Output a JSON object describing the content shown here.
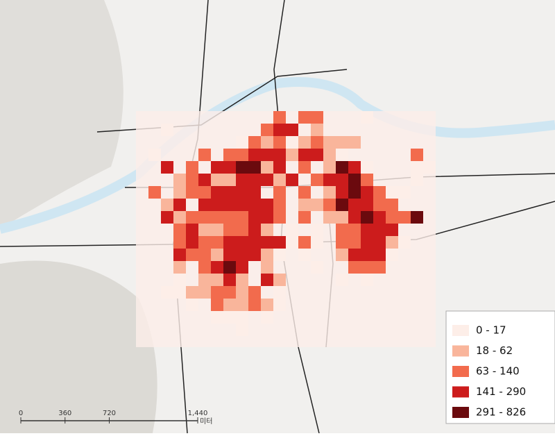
{
  "legend": {
    "items": [
      {
        "label": "0 - 17",
        "color": "#fdeee8"
      },
      {
        "label": "18 - 62",
        "color": "#f9b59b"
      },
      {
        "label": "63 - 140",
        "color": "#f26b4d"
      },
      {
        "label": "141 - 290",
        "color": "#cc1c1c"
      },
      {
        "label": "291 - 826",
        "color": "#6b0a0e"
      }
    ]
  },
  "scale_bar": {
    "ticks": [
      0,
      360,
      720,
      {
        "value": 1440,
        "label": "1,440"
      }
    ],
    "unit": "미터"
  }
}
